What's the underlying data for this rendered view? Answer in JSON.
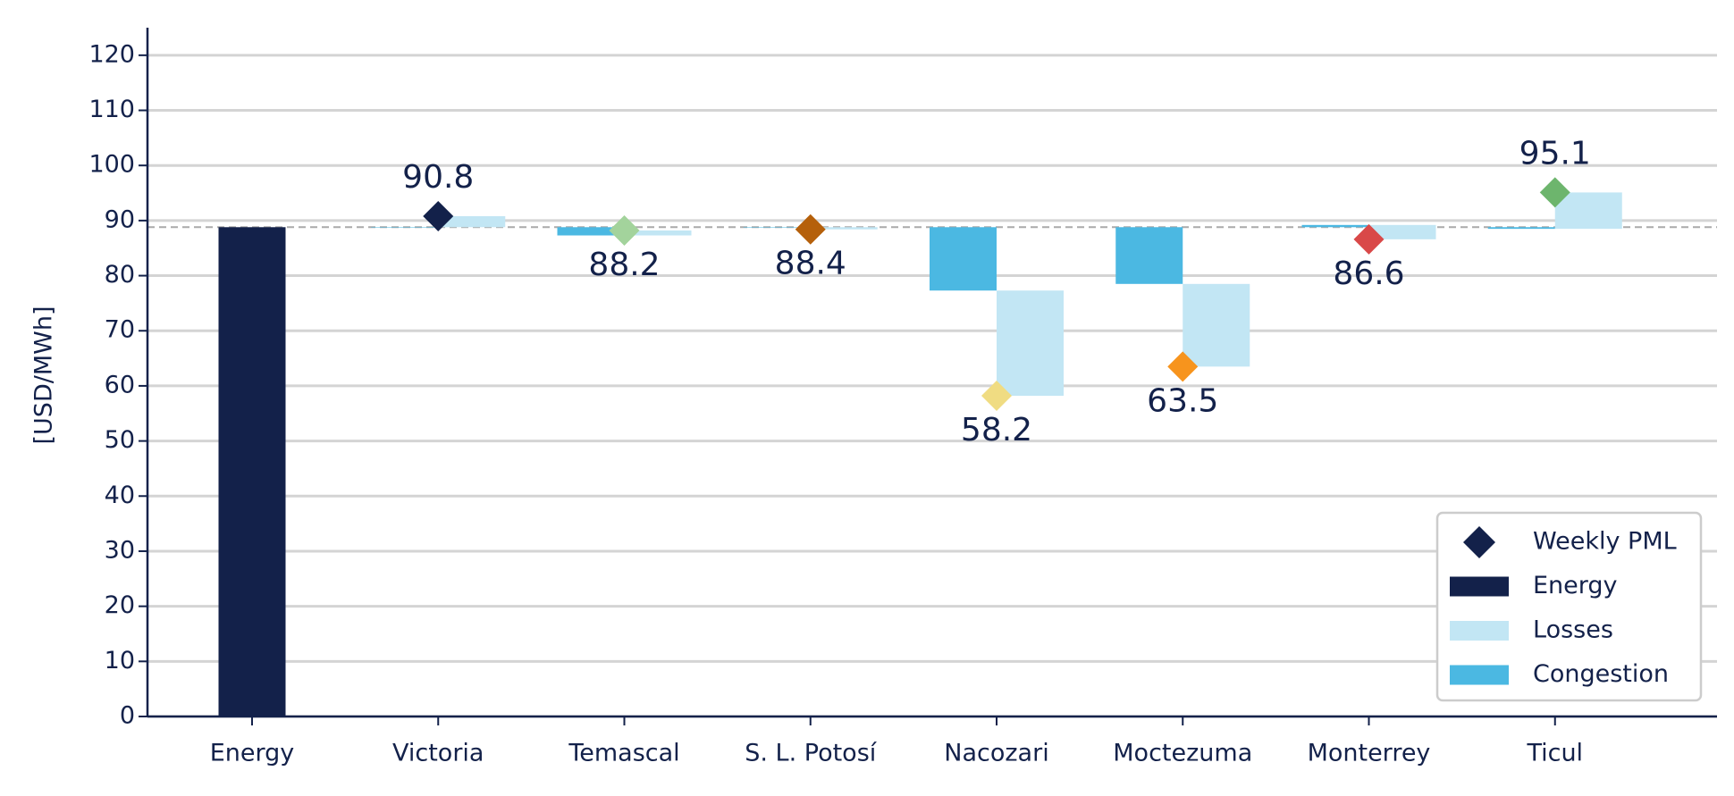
{
  "chart_data": {
    "type": "waterfall",
    "ylabel": "[USD/MWh]",
    "categories": [
      "Energy",
      "Victoria",
      "Temascal",
      "S. L. Potosí",
      "Nacozari",
      "Moctezuma",
      "Monterrey",
      "Ticul"
    ],
    "ylim": [
      0,
      125
    ],
    "yticks": [
      0,
      10,
      20,
      30,
      40,
      50,
      60,
      70,
      80,
      90,
      100,
      110,
      120
    ],
    "grid": true,
    "legend": "lower right",
    "series": [
      {
        "name": "Weekly PML",
        "kind": "marker",
        "color": "#13214a",
        "colors": [
          null,
          "#13214a",
          "#a3d39c",
          "#b5600b",
          "#f0dc82",
          "#f7941d",
          "#d94848",
          "#6db56d"
        ],
        "values": [
          null,
          90.8,
          88.2,
          88.4,
          58.2,
          63.5,
          86.6,
          95.1
        ]
      },
      {
        "name": "Energy",
        "kind": "base",
        "color": "#13214a",
        "values": [
          88.8,
          null,
          null,
          null,
          null,
          null,
          null,
          null
        ]
      },
      {
        "name": "Losses",
        "kind": "losses",
        "color": "#c2e6f4",
        "values": [
          null,
          2.0,
          0.9,
          -0.4,
          -19.1,
          -15.0,
          -2.6,
          6.6
        ]
      },
      {
        "name": "Congestion",
        "kind": "congestion",
        "color": "#4bb8e2",
        "values": [
          null,
          0,
          -1.5,
          0,
          -11.5,
          -10.3,
          0.4,
          -0.3
        ]
      }
    ]
  }
}
